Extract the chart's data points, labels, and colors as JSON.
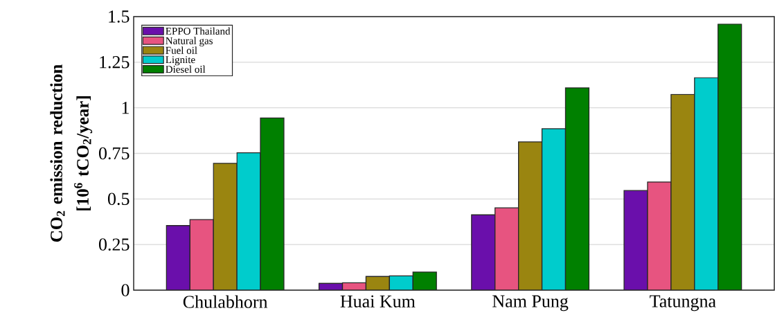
{
  "chart_data": {
    "type": "bar",
    "ylabel": "CO$_{2}$ emission reduction [10$^{6}$ tCO$_{2}$/year]",
    "categories": [
      "Chulabhorn",
      "Huai Kum",
      "Nam Pung",
      "Tatungna"
    ],
    "series": [
      {
        "name": "EPPO Thailand",
        "color": "#6a0fab",
        "values": [
          0.354,
          0.037,
          0.413,
          0.546
        ]
      },
      {
        "name": "Natural gas",
        "color": "#e75480",
        "values": [
          0.387,
          0.04,
          0.451,
          0.593
        ]
      },
      {
        "name": "Fuel oil",
        "color": "#9a8510",
        "values": [
          0.695,
          0.075,
          0.813,
          1.073
        ]
      },
      {
        "name": "Lignite",
        "color": "#00cccc",
        "values": [
          0.753,
          0.078,
          0.885,
          1.165
        ]
      },
      {
        "name": "Diesel oil",
        "color": "#008000",
        "values": [
          0.944,
          0.099,
          1.109,
          1.459
        ]
      }
    ],
    "ylim": [
      0,
      1.5
    ],
    "yticks": [
      0,
      0.25,
      0.5,
      0.75,
      1,
      1.25,
      1.5
    ],
    "grid": "y",
    "legend": "top left"
  }
}
